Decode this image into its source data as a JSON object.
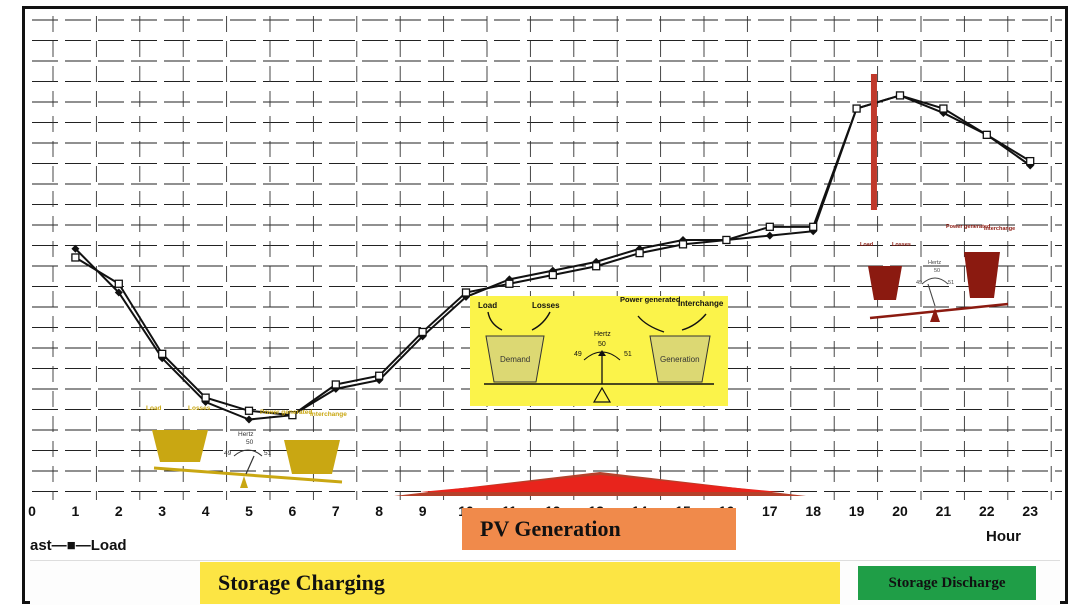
{
  "chart_data": {
    "type": "line",
    "x": [
      0,
      1,
      2,
      3,
      4,
      5,
      6,
      7,
      8,
      9,
      10,
      11,
      12,
      13,
      14,
      15,
      16,
      17,
      18,
      19,
      20,
      21,
      22,
      23
    ],
    "xtick_labels": [
      "0",
      "1",
      "2",
      "3",
      "4",
      "5",
      "6",
      "7",
      "8",
      "9",
      "10",
      "11",
      "12",
      "13",
      "14",
      "15",
      "16",
      "17",
      "18",
      "19",
      "20",
      "21",
      "22",
      "23"
    ],
    "xlabel": "Hour",
    "xlim": [
      0,
      23
    ],
    "ylim": [
      0,
      100
    ],
    "grid": true,
    "series": [
      {
        "name": "ast",
        "x": [
          1,
          2,
          3,
          4,
          5,
          6,
          7,
          8,
          9,
          10,
          11,
          12,
          13,
          14,
          15,
          16,
          17,
          18,
          19,
          20,
          21,
          22,
          23
        ],
        "values": [
          56,
          46,
          31,
          21,
          17,
          18,
          24,
          26,
          36,
          45,
          49,
          51,
          53,
          56,
          58,
          58,
          59,
          60,
          88,
          91,
          87,
          82,
          75
        ],
        "color": "#111111",
        "marker": "diamond"
      },
      {
        "name": "Load",
        "x": [
          1,
          2,
          3,
          4,
          5,
          6,
          7,
          8,
          9,
          10,
          11,
          12,
          13,
          14,
          15,
          16,
          17,
          18,
          19,
          20,
          21,
          22,
          23
        ],
        "values": [
          54,
          48,
          32,
          22,
          19,
          18,
          25,
          27,
          37,
          46,
          48,
          50,
          52,
          55,
          57,
          58,
          61,
          61,
          88,
          91,
          88,
          82,
          76
        ],
        "color": "#111111",
        "marker": "square"
      }
    ],
    "legend": "bottom-left",
    "annotations": {
      "hour_label": "Hour",
      "legend_text": "ast—■—Load",
      "pv_generation": "PV Generation",
      "storage_charging": "Storage Charging",
      "storage_discharge": "Storage Discharge",
      "pv_triangle_color": "#e8241c",
      "pv_triangle_base_color": "#b5402a",
      "red_marker_color": "#c0392b",
      "red_marker_hour": 19.4
    }
  },
  "panels": {
    "left": {
      "load": "Load",
      "losses": "Losses",
      "power_generated": "Power generated",
      "interchange": "Interchange",
      "hertz": "Hertz",
      "hz_50": "50",
      "hz_49": "49",
      "hz_51": "51",
      "color": "#c9a712"
    },
    "center": {
      "load": "Load",
      "losses": "Losses",
      "power_generated": "Power generated",
      "interchange": "Interchange",
      "hertz": "Hertz",
      "hz_50": "50",
      "hz_49": "49",
      "hz_51": "51",
      "demand": "Demand",
      "generation": "Generation",
      "background": "#fbf34a",
      "bucket_fill": "#dcd873"
    },
    "right": {
      "load": "Load",
      "losses": "Losses",
      "power_generated": "Power generated",
      "interchange": "Interchange",
      "hertz": "Hertz",
      "hz_50": "50",
      "hz_49": "49",
      "hz_51": "51",
      "color": "#8b1a10"
    }
  }
}
